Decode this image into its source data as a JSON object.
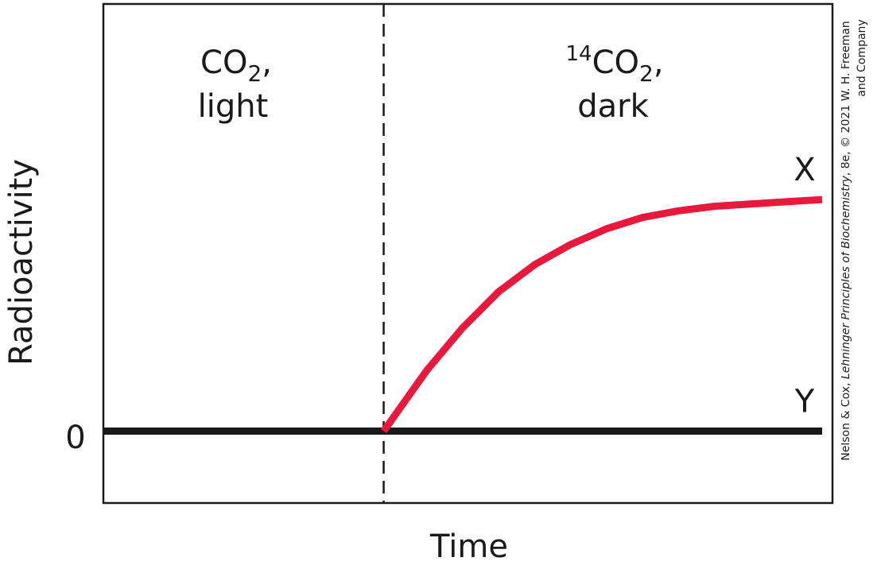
{
  "chart_data": {
    "type": "line",
    "ylabel": "Radioactivity",
    "xlabel": "Time",
    "y_tick_labels": [
      "0"
    ],
    "x_range": [
      0,
      1
    ],
    "y_range": [
      -0.32,
      1.9
    ],
    "divider_x": 0.39,
    "phases": [
      {
        "gas": "CO",
        "subscript": "2",
        "condition": "light",
        "isotope": ""
      },
      {
        "gas": "CO",
        "subscript": "2",
        "condition": "dark",
        "isotope": "14"
      }
    ],
    "series": [
      {
        "name": "X",
        "color": "#e8193c",
        "x": [
          0.39,
          0.45,
          0.5,
          0.55,
          0.6,
          0.65,
          0.7,
          0.75,
          0.8,
          0.85,
          0.9,
          0.95,
          1.0
        ],
        "y": [
          0.0,
          0.27,
          0.46,
          0.62,
          0.74,
          0.83,
          0.9,
          0.95,
          0.98,
          1.0,
          1.01,
          1.02,
          1.03
        ]
      },
      {
        "name": "Y",
        "color": "#1a1a1a",
        "x": [
          0.0,
          1.0
        ],
        "y": [
          0.0,
          0.0
        ]
      }
    ],
    "credit": {
      "line1_prefix": "Nelson & Cox, ",
      "line1_title": "Lehninger Principles of Biochemistry",
      "line1_suffix": ", 8e, © 2021 W. H. Freeman",
      "line2": "and Company"
    }
  }
}
